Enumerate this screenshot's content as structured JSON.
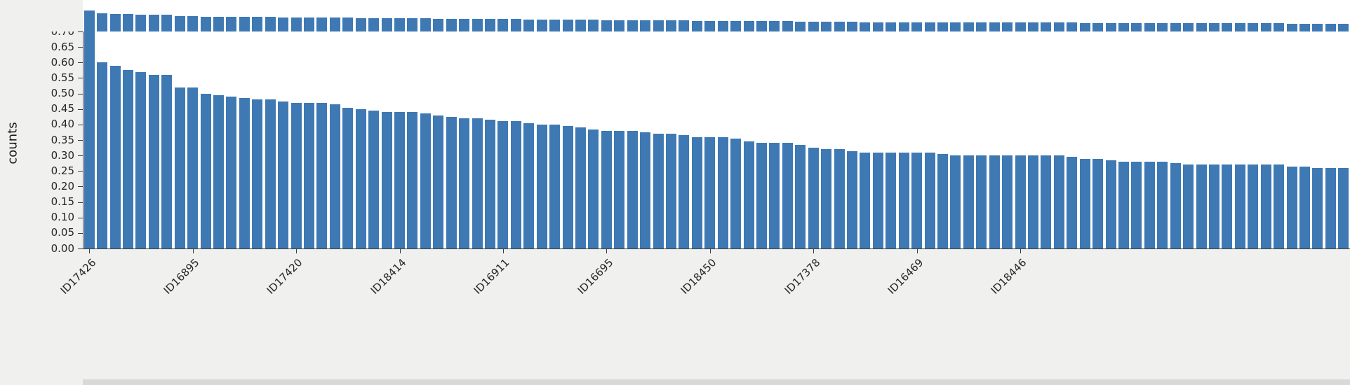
{
  "colors": {
    "figure_bg": "#f0f0ee",
    "plot_bg": "#ffffff",
    "bar": "#3e79b4",
    "text": "#262626",
    "bottom_panel": "#d9d9d9"
  },
  "chart_data": {
    "type": "bar",
    "title": "",
    "xlabel": "",
    "ylabel": "counts",
    "ylim": [
      0,
      0.7
    ],
    "grid": false,
    "legend": false,
    "n_bars": 98,
    "values": [
      0.7,
      0.6,
      0.59,
      0.575,
      0.57,
      0.56,
      0.56,
      0.52,
      0.52,
      0.5,
      0.495,
      0.49,
      0.485,
      0.48,
      0.48,
      0.475,
      0.47,
      0.47,
      0.47,
      0.465,
      0.455,
      0.45,
      0.445,
      0.44,
      0.44,
      0.44,
      0.435,
      0.43,
      0.425,
      0.42,
      0.42,
      0.415,
      0.41,
      0.41,
      0.405,
      0.4,
      0.4,
      0.395,
      0.39,
      0.385,
      0.38,
      0.38,
      0.38,
      0.375,
      0.37,
      0.37,
      0.365,
      0.36,
      0.36,
      0.36,
      0.355,
      0.345,
      0.34,
      0.34,
      0.34,
      0.335,
      0.325,
      0.32,
      0.32,
      0.315,
      0.31,
      0.31,
      0.31,
      0.31,
      0.31,
      0.31,
      0.305,
      0.3,
      0.3,
      0.3,
      0.3,
      0.3,
      0.3,
      0.3,
      0.3,
      0.3,
      0.295,
      0.29,
      0.29,
      0.285,
      0.28,
      0.28,
      0.28,
      0.28,
      0.275,
      0.27,
      0.27,
      0.27,
      0.27,
      0.27,
      0.27,
      0.27,
      0.27,
      0.265,
      0.265,
      0.26,
      0.26,
      0.26
    ],
    "yticks": [
      "0.00",
      "0.05",
      "0.10",
      "0.15",
      "0.20",
      "0.25",
      "0.30",
      "0.35",
      "0.40",
      "0.45",
      "0.50",
      "0.55",
      "0.60",
      "0.65",
      "0.70"
    ],
    "xtick_indices": [
      0,
      8,
      16,
      24,
      32,
      40,
      48,
      56,
      64,
      72
    ],
    "xtick_labels": [
      "ID17426",
      "ID16895",
      "ID17420",
      "ID18414",
      "ID16911",
      "ID16695",
      "ID18450",
      "ID17378",
      "ID16469",
      "ID18446"
    ]
  }
}
